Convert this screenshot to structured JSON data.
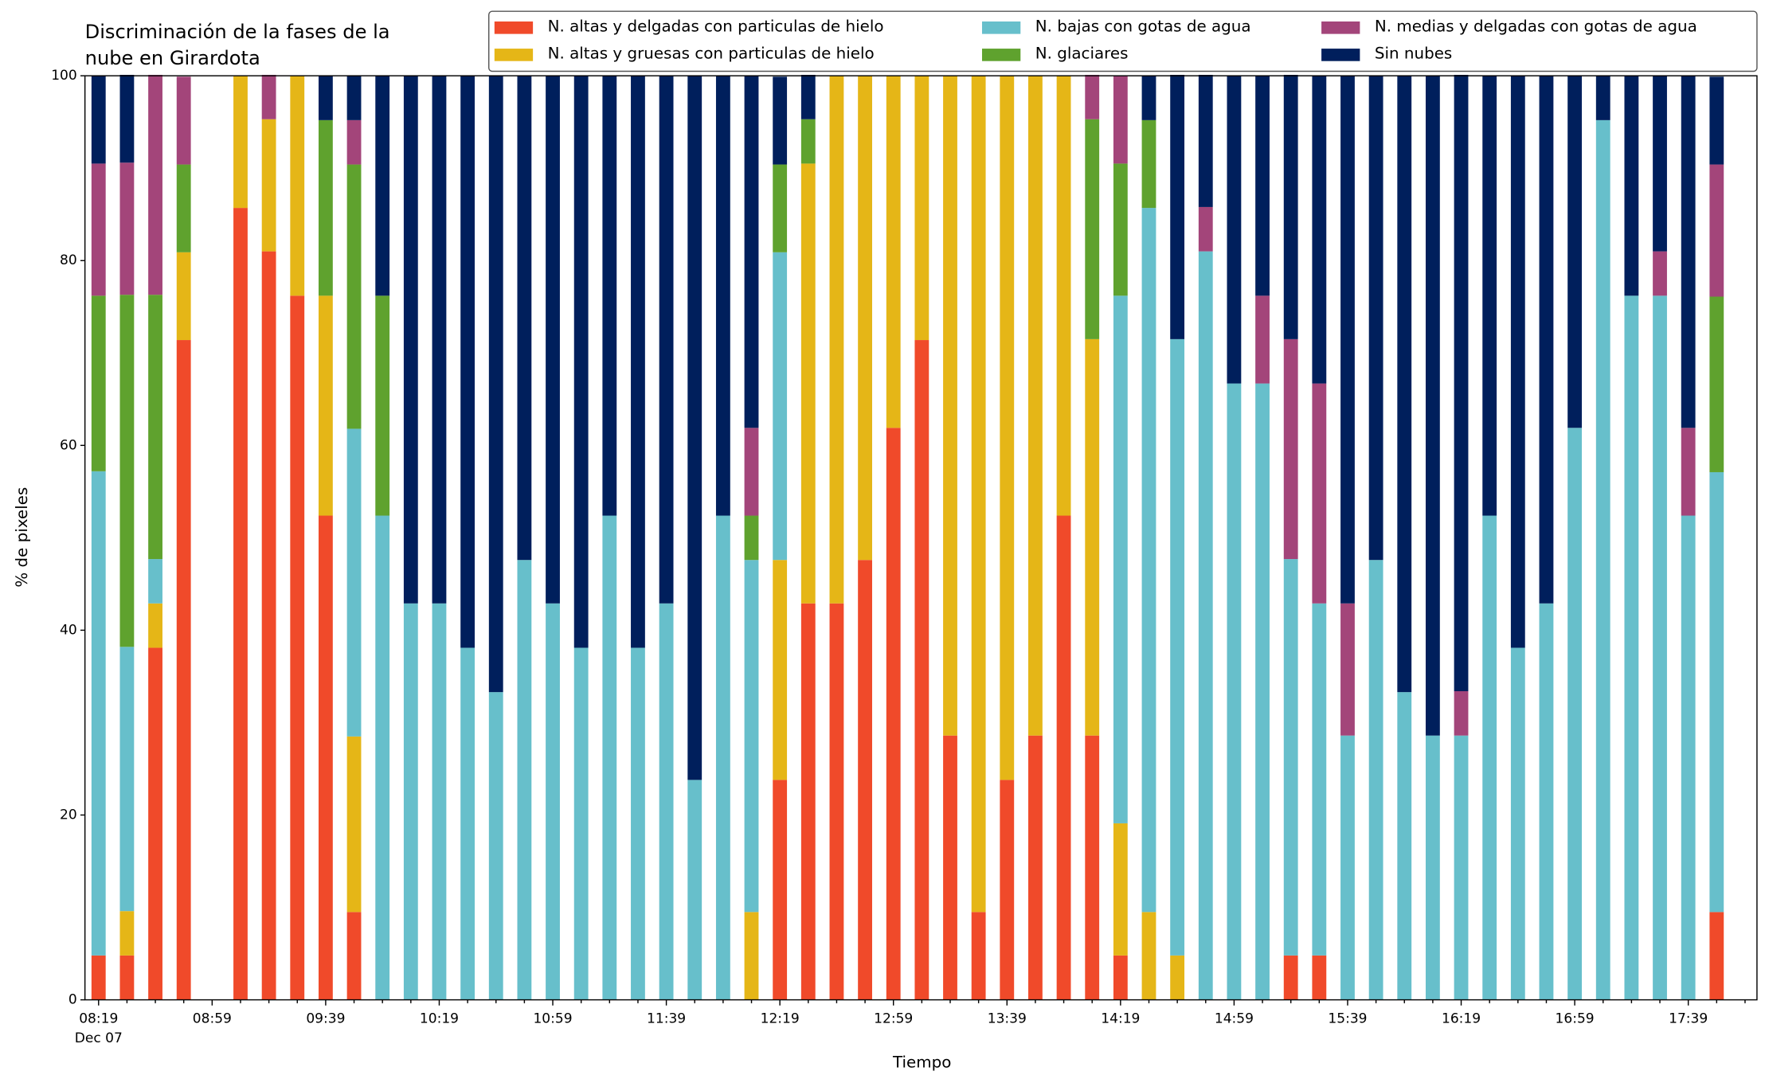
{
  "chart_data": {
    "type": "stacked_bar",
    "title": [
      "Discriminación de la fases de la",
      "nube en Girardota"
    ],
    "xlabel": "Tiempo",
    "ylabel": "% de pixeles",
    "x_sublabel": "Dec 07",
    "categories": [
      "08:19",
      null,
      null,
      null,
      "08:59",
      null,
      null,
      null,
      "09:39",
      null,
      null,
      null,
      "10:19",
      null,
      null,
      null,
      "10:59",
      null,
      null,
      null,
      "11:39",
      null,
      null,
      null,
      "12:19",
      null,
      null,
      null,
      "12:59",
      null,
      null,
      null,
      "13:39",
      null,
      null,
      null,
      "14:19",
      null,
      null,
      null,
      "14:59",
      null,
      null,
      null,
      "15:39",
      null,
      null,
      null,
      "16:19",
      null,
      null,
      null,
      "16:59",
      null,
      null,
      null,
      "17:39",
      null
    ],
    "ylim": [
      0,
      100
    ],
    "yticks": [
      0,
      20,
      40,
      60,
      80,
      100
    ],
    "grid": false,
    "legend": "upper right",
    "series": [
      {
        "name": "N. altas y delgadas con particulas de hielo",
        "color": "#f04a2a",
        "values": [
          4.8,
          4.8,
          38.1,
          71.4,
          0,
          85.7,
          81,
          76.2,
          52.4,
          9.5,
          0,
          0,
          0,
          0,
          0,
          0,
          0,
          0,
          0,
          0,
          0,
          0,
          0,
          0,
          23.8,
          42.9,
          42.9,
          47.6,
          61.9,
          71.4,
          28.6,
          9.5,
          23.8,
          28.6,
          52.4,
          28.6,
          4.8,
          0,
          0,
          0,
          0,
          0,
          4.8,
          4.8,
          0,
          0,
          0,
          0,
          0,
          0,
          0,
          0,
          0,
          0,
          0,
          0,
          0,
          9.5
        ]
      },
      {
        "name": "N. altas y gruesas con particulas de hielo",
        "color": "#e5b617",
        "values": [
          0,
          4.8,
          4.8,
          9.5,
          0,
          14.3,
          14.3,
          23.8,
          23.8,
          19,
          0,
          0,
          0,
          0,
          0,
          0,
          0,
          0,
          0,
          0,
          0,
          0,
          0,
          9.5,
          23.8,
          47.6,
          57.1,
          52.4,
          38.1,
          28.6,
          71.4,
          90.5,
          76.2,
          71.4,
          47.6,
          42.9,
          14.3,
          9.5,
          4.8,
          0,
          0,
          0,
          0,
          0,
          0,
          0,
          0,
          0,
          0,
          0,
          0,
          0,
          0,
          0,
          0,
          0,
          0,
          0
        ]
      },
      {
        "name": "N. bajas con gotas de agua",
        "color": "#67bfcb",
        "values": [
          52.4,
          28.6,
          4.8,
          0,
          0,
          0,
          0,
          0,
          0,
          33.3,
          52.4,
          42.9,
          42.9,
          38.1,
          33.3,
          47.6,
          42.9,
          38.1,
          52.4,
          38.1,
          42.9,
          23.8,
          52.4,
          38.1,
          33.3,
          0,
          0,
          0,
          0,
          0,
          0,
          0,
          0,
          0,
          0,
          0,
          57.1,
          76.2,
          66.7,
          81,
          66.7,
          66.7,
          42.9,
          38.1,
          28.6,
          47.6,
          33.3,
          28.6,
          28.6,
          52.4,
          38.1,
          42.9,
          61.9,
          95.2,
          76.2,
          76.2,
          52.4,
          47.6
        ]
      },
      {
        "name": "N. glaciares",
        "color": "#5fa22e",
        "values": [
          19,
          38.1,
          28.6,
          9.5,
          0,
          0,
          0,
          0,
          19,
          28.6,
          23.8,
          0,
          0,
          0,
          0,
          0,
          0,
          0,
          0,
          0,
          0,
          0,
          0,
          4.8,
          9.5,
          4.8,
          0,
          0,
          0,
          0,
          0,
          0,
          0,
          0,
          0,
          23.8,
          14.3,
          9.5,
          0,
          0,
          0,
          0,
          0,
          0,
          0,
          0,
          0,
          0,
          0,
          0,
          0,
          0,
          0,
          0,
          0,
          0,
          0,
          19
        ]
      },
      {
        "name": "N. medias y delgadas con gotas de agua",
        "color": "#a3457a",
        "values": [
          14.3,
          14.3,
          23.8,
          9.5,
          0,
          0,
          4.8,
          0,
          0,
          4.8,
          0,
          0,
          0,
          0,
          0,
          0,
          0,
          0,
          0,
          0,
          0,
          0,
          0,
          9.5,
          0,
          0,
          0,
          0,
          0,
          0,
          0,
          0,
          0,
          0,
          0,
          4.8,
          9.5,
          0,
          0,
          4.8,
          0,
          9.5,
          23.8,
          23.8,
          14.3,
          0,
          0,
          0,
          4.8,
          0,
          0,
          0,
          0,
          0,
          0,
          4.8,
          9.5,
          14.3
        ]
      },
      {
        "name": "Sin nubes",
        "color": "#001f5c",
        "values": [
          9.5,
          9.5,
          0,
          0,
          0,
          0,
          0,
          0,
          4.8,
          4.8,
          23.8,
          57.1,
          57.1,
          61.9,
          66.7,
          52.4,
          57.1,
          61.9,
          47.6,
          61.9,
          57.1,
          76.2,
          47.6,
          38.1,
          9.5,
          4.8,
          0,
          0,
          0,
          0,
          0,
          0,
          0,
          0,
          0,
          0,
          0,
          4.8,
          28.6,
          14.3,
          33.3,
          23.8,
          28.6,
          33.3,
          57.1,
          52.4,
          66.7,
          71.4,
          66.7,
          47.6,
          61.9,
          57.1,
          38.1,
          4.8,
          23.8,
          19,
          38.1,
          9.5
        ]
      }
    ]
  }
}
